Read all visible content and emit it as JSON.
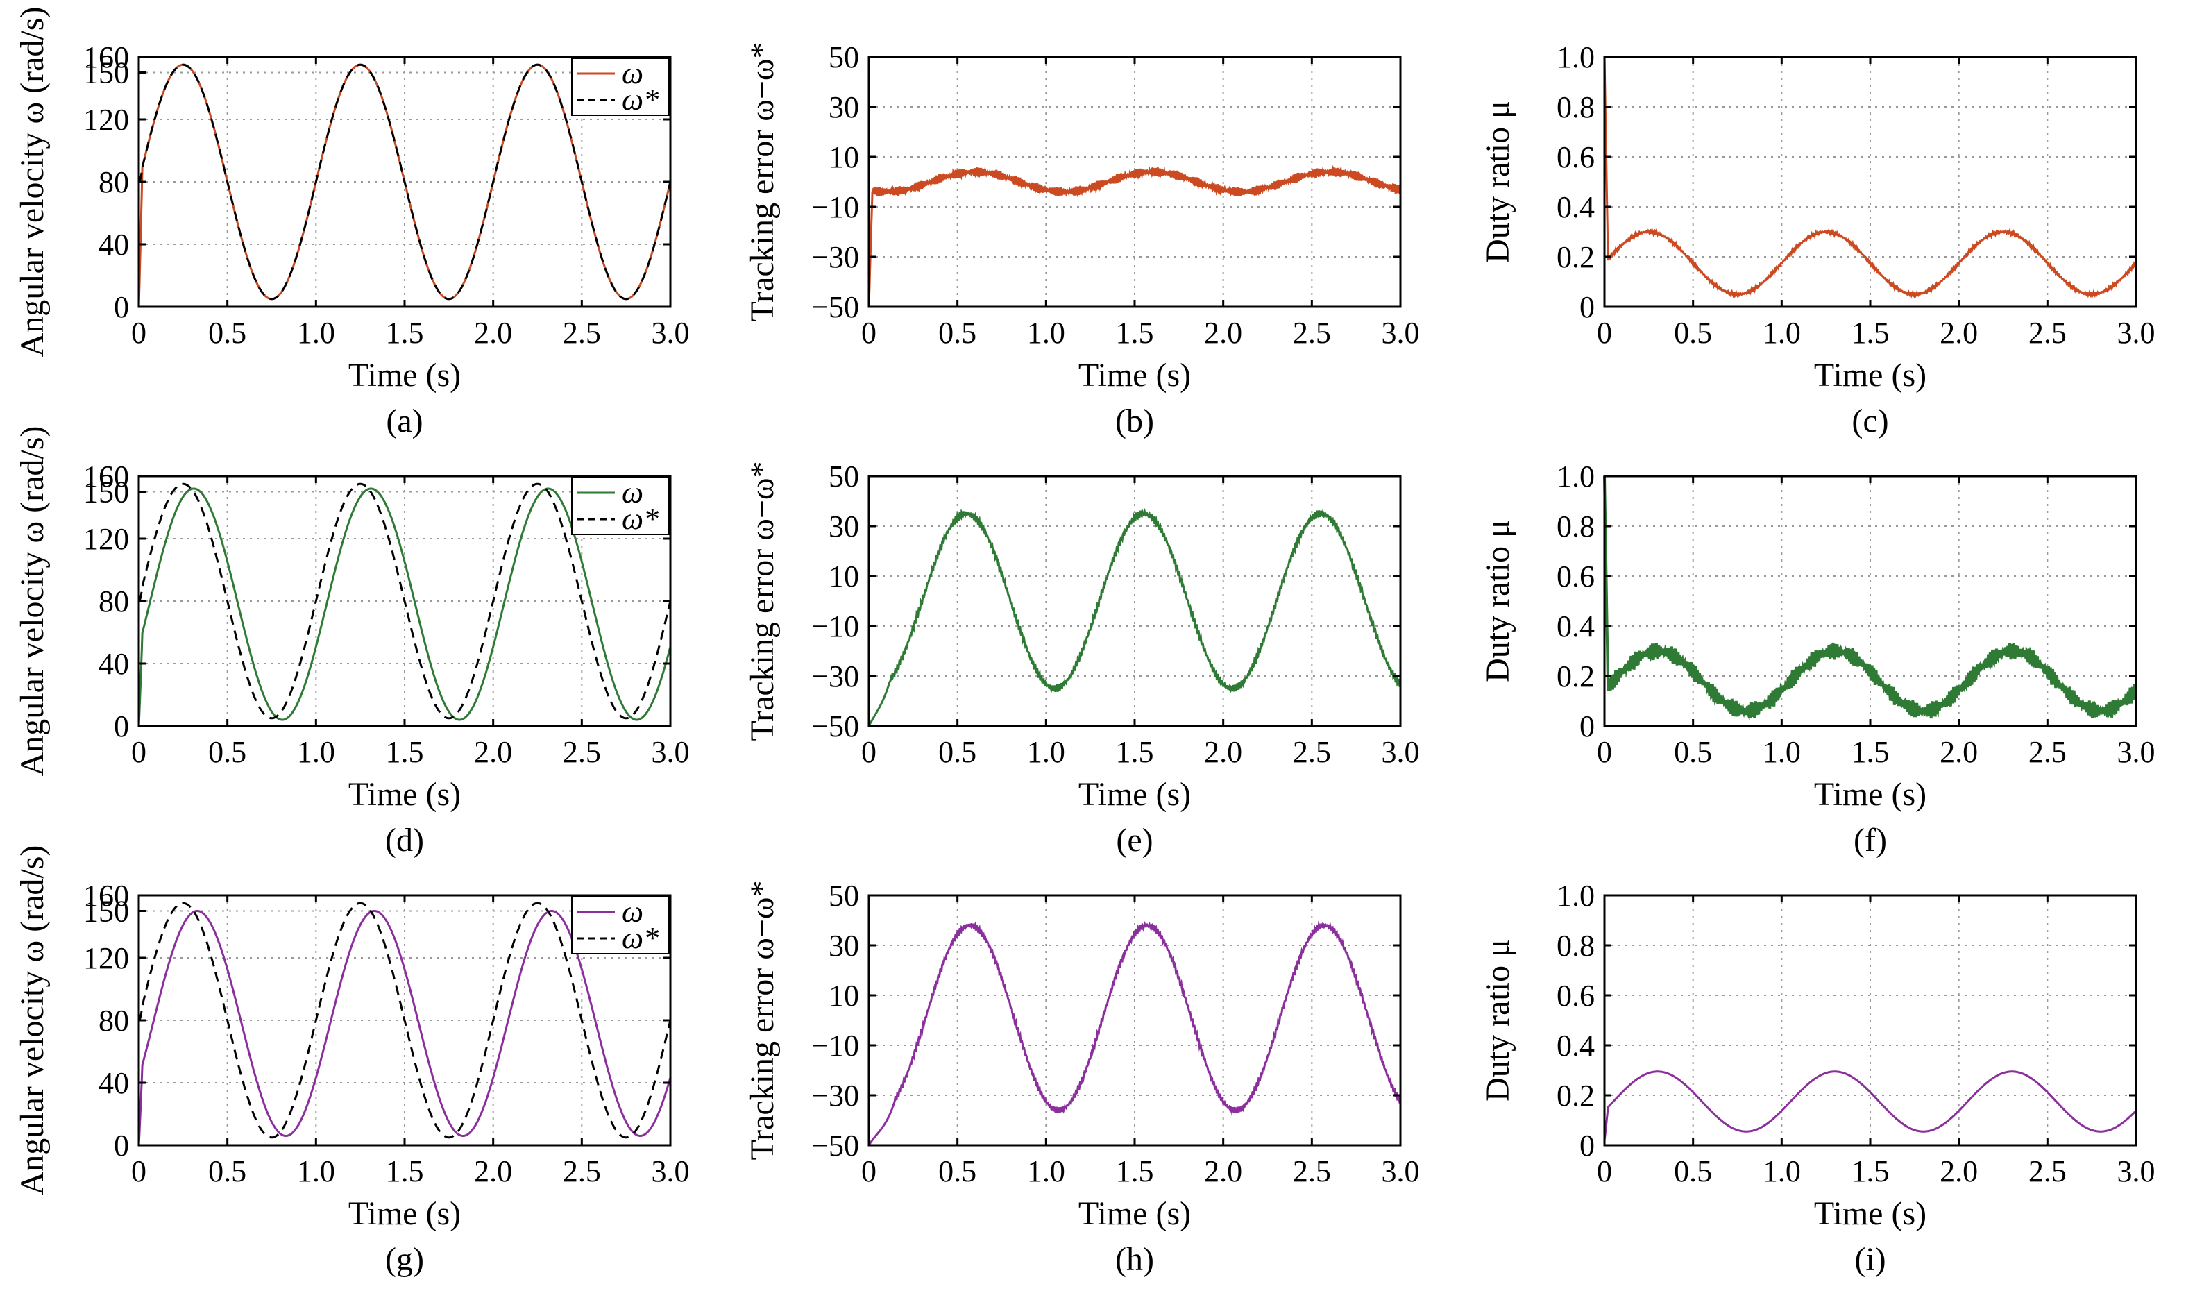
{
  "chart_data": [
    {
      "id": "a",
      "type": "line",
      "caption": "(a)",
      "xlabel": "Time (s)",
      "ylabel": "Angular velocity ω (rad/s)",
      "xlim": [
        0,
        3
      ],
      "ylim": [
        0,
        160
      ],
      "xticks": [
        "0",
        "0.5",
        "1.0",
        "1.5",
        "2.0",
        "2.5",
        "3.0"
      ],
      "yticks": [
        "0",
        "40",
        "80",
        "120",
        "150",
        "160"
      ],
      "ytick_values": [
        0,
        40,
        80,
        120,
        150,
        160
      ],
      "grid": true,
      "legend": "top-right",
      "series": [
        {
          "name": "ω",
          "color": "#cc4a22",
          "style": "solid",
          "model": "sine",
          "params": {
            "offset": 80,
            "amp": 75,
            "phase": 0.0,
            "start": 0
          }
        },
        {
          "name": "ω*",
          "color": "#000000",
          "style": "dashed",
          "model": "sine",
          "params": {
            "offset": 80,
            "amp": 75,
            "phase": 0.0,
            "start": 80
          }
        }
      ]
    },
    {
      "id": "d",
      "type": "line",
      "caption": "(d)",
      "xlabel": "Time (s)",
      "ylabel": "Angular velocity ω (rad/s)",
      "xlim": [
        0,
        3
      ],
      "ylim": [
        0,
        160
      ],
      "xticks": [
        "0",
        "0.5",
        "1.0",
        "1.5",
        "2.0",
        "2.5",
        "3.0"
      ],
      "yticks": [
        "0",
        "40",
        "80",
        "120",
        "150",
        "160"
      ],
      "ytick_values": [
        0,
        40,
        80,
        120,
        150,
        160
      ],
      "grid": true,
      "legend": "top-right",
      "series": [
        {
          "name": "ω",
          "color": "#2f7a34",
          "style": "solid",
          "model": "sine",
          "params": {
            "offset": 78,
            "amp": 74,
            "phase": 0.06,
            "start": 0
          }
        },
        {
          "name": "ω*",
          "color": "#000000",
          "style": "dashed",
          "model": "sine",
          "params": {
            "offset": 80,
            "amp": 75,
            "phase": 0.0,
            "start": 80
          }
        }
      ]
    },
    {
      "id": "g",
      "type": "line",
      "caption": "(g)",
      "xlabel": "Time (s)",
      "ylabel": "Angular velocity ω (rad/s)",
      "xlim": [
        0,
        3
      ],
      "ylim": [
        0,
        160
      ],
      "xticks": [
        "0",
        "0.5",
        "1.0",
        "1.5",
        "2.0",
        "2.5",
        "3.0"
      ],
      "yticks": [
        "0",
        "40",
        "80",
        "120",
        "150",
        "160"
      ],
      "ytick_values": [
        0,
        40,
        80,
        120,
        150,
        160
      ],
      "grid": true,
      "legend": "top-right",
      "series": [
        {
          "name": "ω",
          "color": "#8b2f9c",
          "style": "solid",
          "model": "sine",
          "params": {
            "offset": 78,
            "amp": 72,
            "phase": 0.08,
            "start": 0
          }
        },
        {
          "name": "ω*",
          "color": "#000000",
          "style": "dashed",
          "model": "sine",
          "params": {
            "offset": 80,
            "amp": 75,
            "phase": 0.0,
            "start": 80
          }
        }
      ]
    },
    {
      "id": "b",
      "type": "line",
      "caption": "(b)",
      "xlabel": "Time (s)",
      "ylabel": "Tracking error ω−ω*",
      "xlim": [
        0,
        3
      ],
      "ylim": [
        -50,
        50
      ],
      "xticks": [
        "0",
        "0.5",
        "1.0",
        "1.5",
        "2.0",
        "2.5",
        "3.0"
      ],
      "yticks": [
        "−50",
        "−30",
        "−10",
        "10",
        "30",
        "50"
      ],
      "ytick_values": [
        -50,
        -30,
        -10,
        10,
        30,
        50
      ],
      "grid": true,
      "series": [
        {
          "color": "#cc4a22",
          "style": "solid",
          "model": "sine",
          "params": {
            "offset": 0,
            "amp": 4,
            "phase": 0.35,
            "start": -50,
            "noise": 1.2
          }
        }
      ]
    },
    {
      "id": "e",
      "type": "line",
      "caption": "(e)",
      "xlabel": "Time (s)",
      "ylabel": "Tracking error ω−ω*",
      "xlim": [
        0,
        3
      ],
      "ylim": [
        -50,
        50
      ],
      "xticks": [
        "0",
        "0.5",
        "1.0",
        "1.5",
        "2.0",
        "2.5",
        "3.0"
      ],
      "yticks": [
        "−50",
        "−30",
        "−10",
        "10",
        "30",
        "50"
      ],
      "ytick_values": [
        -50,
        -30,
        -10,
        10,
        30,
        50
      ],
      "grid": true,
      "series": [
        {
          "color": "#2f7a34",
          "style": "solid",
          "model": "sine",
          "params": {
            "offset": 0,
            "amp": 35,
            "phase": 0.3,
            "start": -50,
            "startAt": 0.12,
            "noise": 1.0
          }
        }
      ]
    },
    {
      "id": "h",
      "type": "line",
      "caption": "(h)",
      "xlabel": "Time (s)",
      "ylabel": "Tracking error ω−ω*",
      "xlim": [
        0,
        3
      ],
      "ylim": [
        -50,
        50
      ],
      "xticks": [
        "0",
        "0.5",
        "1.0",
        "1.5",
        "2.0",
        "2.5",
        "3.0"
      ],
      "yticks": [
        "−50",
        "−30",
        "−10",
        "10",
        "30",
        "50"
      ],
      "ytick_values": [
        -50,
        -30,
        -10,
        10,
        30,
        50
      ],
      "grid": true,
      "series": [
        {
          "color": "#8b2f9c",
          "style": "solid",
          "model": "sine",
          "params": {
            "offset": 1,
            "amp": 37,
            "phase": 0.32,
            "start": -50,
            "startAt": 0.15,
            "noise": 0.8
          }
        }
      ]
    },
    {
      "id": "c",
      "type": "line",
      "caption": "(c)",
      "xlabel": "Time (s)",
      "ylabel": "Duty ratio μ",
      "xlim": [
        0,
        3
      ],
      "ylim": [
        0,
        1
      ],
      "xticks": [
        "0",
        "0.5",
        "1.0",
        "1.5",
        "2.0",
        "2.5",
        "3.0"
      ],
      "yticks": [
        "0",
        "0.2",
        "0.4",
        "0.6",
        "0.8",
        "1.0"
      ],
      "ytick_values": [
        0,
        0.2,
        0.4,
        0.6,
        0.8,
        1.0
      ],
      "grid": true,
      "series": [
        {
          "color": "#cc4a22",
          "style": "solid",
          "model": "sine",
          "params": {
            "offset": 0.175,
            "amp": 0.125,
            "phase": 0.0,
            "start": 1.0,
            "noise": 0.004
          }
        }
      ]
    },
    {
      "id": "f",
      "type": "line",
      "caption": "(f)",
      "xlabel": "Time (s)",
      "ylabel": "Duty ratio μ",
      "xlim": [
        0,
        3
      ],
      "ylim": [
        0,
        1
      ],
      "xticks": [
        "0",
        "0.5",
        "1.0",
        "1.5",
        "2.0",
        "2.5",
        "3.0"
      ],
      "yticks": [
        "0",
        "0.2",
        "0.4",
        "0.6",
        "0.8",
        "1.0"
      ],
      "ytick_values": [
        0,
        0.2,
        0.4,
        0.6,
        0.8,
        1.0
      ],
      "grid": true,
      "series": [
        {
          "color": "#2f7a34",
          "style": "solid",
          "model": "sine",
          "params": {
            "offset": 0.18,
            "amp": 0.12,
            "phase": 0.05,
            "start": 1.0,
            "noise": 0.022
          }
        }
      ]
    },
    {
      "id": "i",
      "type": "line",
      "caption": "(i)",
      "xlabel": "Time (s)",
      "ylabel": "Duty ratio μ",
      "xlim": [
        0,
        3
      ],
      "ylim": [
        0,
        1
      ],
      "xticks": [
        "0",
        "0.5",
        "1.0",
        "1.5",
        "2.0",
        "2.5",
        "3.0"
      ],
      "yticks": [
        "0",
        "0.2",
        "0.4",
        "0.6",
        "0.8",
        "1.0"
      ],
      "ytick_values": [
        0,
        0.2,
        0.4,
        0.6,
        0.8,
        1.0
      ],
      "grid": true,
      "series": [
        {
          "color": "#8b2f9c",
          "style": "solid",
          "model": "sine",
          "params": {
            "offset": 0.175,
            "amp": 0.12,
            "phase": 0.05,
            "start": 0.02
          }
        }
      ]
    }
  ]
}
